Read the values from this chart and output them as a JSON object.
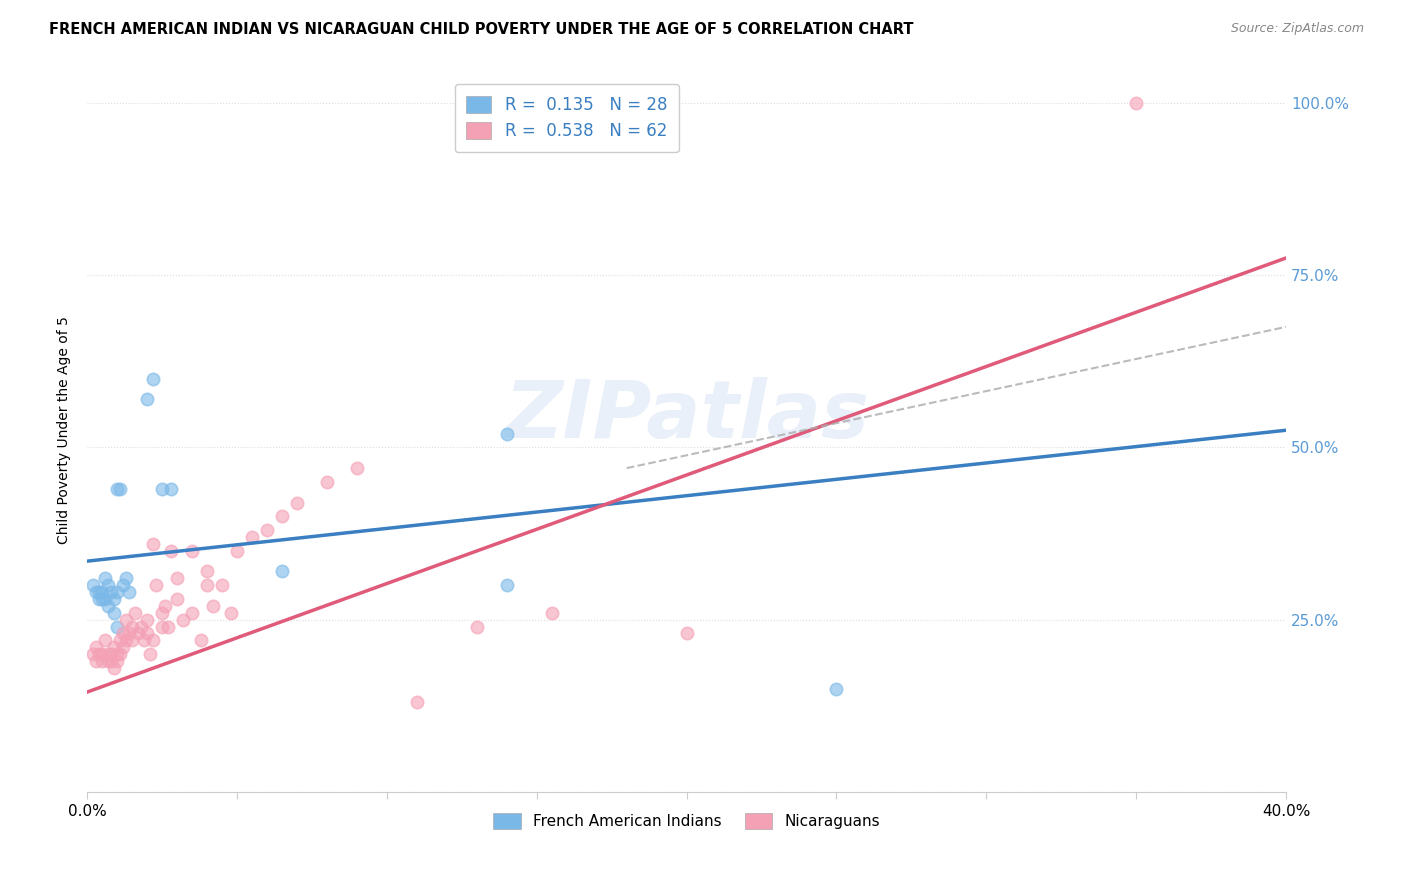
{
  "title": "FRENCH AMERICAN INDIAN VS NICARAGUAN CHILD POVERTY UNDER THE AGE OF 5 CORRELATION CHART",
  "source": "Source: ZipAtlas.com",
  "ylabel": "Child Poverty Under the Age of 5",
  "xlim": [
    0.0,
    0.4
  ],
  "ylim": [
    0.0,
    1.05
  ],
  "ytick_vals": [
    0.0,
    0.25,
    0.5,
    0.75,
    1.0
  ],
  "xtick_vals": [
    0.0,
    0.05,
    0.1,
    0.15,
    0.2,
    0.25,
    0.3,
    0.35,
    0.4
  ],
  "blue_scatter_x": [
    0.002,
    0.003,
    0.004,
    0.004,
    0.005,
    0.005,
    0.006,
    0.006,
    0.007,
    0.007,
    0.008,
    0.009,
    0.009,
    0.01,
    0.01,
    0.01,
    0.011,
    0.012,
    0.013,
    0.014,
    0.02,
    0.022,
    0.025,
    0.028,
    0.065,
    0.14,
    0.14,
    0.25
  ],
  "blue_scatter_y": [
    0.3,
    0.29,
    0.29,
    0.28,
    0.29,
    0.28,
    0.31,
    0.28,
    0.27,
    0.3,
    0.29,
    0.28,
    0.26,
    0.44,
    0.29,
    0.24,
    0.44,
    0.3,
    0.31,
    0.29,
    0.57,
    0.6,
    0.44,
    0.44,
    0.32,
    0.3,
    0.52,
    0.15
  ],
  "pink_scatter_x": [
    0.002,
    0.003,
    0.003,
    0.004,
    0.005,
    0.005,
    0.006,
    0.007,
    0.007,
    0.008,
    0.008,
    0.009,
    0.009,
    0.01,
    0.01,
    0.011,
    0.011,
    0.012,
    0.012,
    0.013,
    0.013,
    0.014,
    0.015,
    0.015,
    0.016,
    0.017,
    0.018,
    0.019,
    0.02,
    0.02,
    0.021,
    0.022,
    0.022,
    0.023,
    0.025,
    0.025,
    0.026,
    0.027,
    0.028,
    0.03,
    0.03,
    0.032,
    0.035,
    0.035,
    0.038,
    0.04,
    0.04,
    0.042,
    0.045,
    0.048,
    0.05,
    0.055,
    0.06,
    0.065,
    0.07,
    0.08,
    0.09,
    0.11,
    0.13,
    0.155,
    0.2,
    0.35
  ],
  "pink_scatter_y": [
    0.2,
    0.21,
    0.19,
    0.2,
    0.2,
    0.19,
    0.22,
    0.2,
    0.19,
    0.2,
    0.19,
    0.18,
    0.21,
    0.2,
    0.19,
    0.22,
    0.2,
    0.23,
    0.21,
    0.25,
    0.22,
    0.23,
    0.24,
    0.22,
    0.26,
    0.23,
    0.24,
    0.22,
    0.25,
    0.23,
    0.2,
    0.22,
    0.36,
    0.3,
    0.24,
    0.26,
    0.27,
    0.24,
    0.35,
    0.28,
    0.31,
    0.25,
    0.26,
    0.35,
    0.22,
    0.3,
    0.32,
    0.27,
    0.3,
    0.26,
    0.35,
    0.37,
    0.38,
    0.4,
    0.42,
    0.45,
    0.47,
    0.13,
    0.24,
    0.26,
    0.23,
    1.0
  ],
  "blue_line_x0": 0.0,
  "blue_line_x1": 0.4,
  "blue_line_y0": 0.335,
  "blue_line_y1": 0.525,
  "pink_line_x0": 0.0,
  "pink_line_x1": 0.4,
  "pink_line_y0": 0.145,
  "pink_line_y1": 0.775,
  "dashed_line_x0": 0.18,
  "dashed_line_x1": 0.4,
  "dashed_line_y0": 0.47,
  "dashed_line_y1": 0.675,
  "watermark": "ZIPatlas",
  "bg_color": "#ffffff",
  "blue_color": "#7ab8e8",
  "pink_color": "#f4a0b5",
  "trend_blue": "#3a7fc1",
  "trend_pink": "#e05a7a",
  "grid_color": "#dddddd",
  "right_tick_color": "#5b9bd5"
}
